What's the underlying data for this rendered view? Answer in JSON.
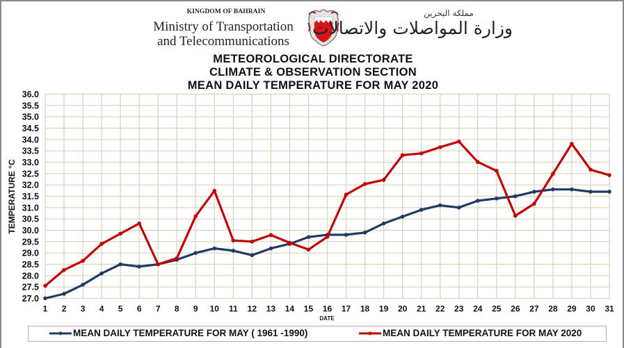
{
  "header": {
    "kingdom": "KINGDOM OF BAHRAIN",
    "ministry_line1": "Ministry of Transportation",
    "ministry_line2": "and Telecommunications",
    "arabic_kingdom": "مملكة البحرين",
    "arabic_ministry": "وزارة المواصلات والاتصالات",
    "emblem_icon": "bahrain-coat-of-arms-icon"
  },
  "colors": {
    "series_1961_1990": "#1f3a63",
    "series_2020": "#c00000",
    "grid": "#d6d2bc",
    "legend_border": "#c9a9a9"
  },
  "chart_data": {
    "type": "line",
    "title": [
      "METEOROLOGICAL  DIRECTORATE",
      "CLIMATE & OBSERVATION  SECTION",
      "MEAN DAILY TEMPERATURE  FOR MAY 2020"
    ],
    "xlabel": "DATE",
    "ylabel": "TEMPERATURE °C",
    "ylim": [
      27.0,
      36.0
    ],
    "ytick_step": 0.5,
    "yticks": [
      "27.0",
      "27.5",
      "28.0",
      "28.5",
      "29.0",
      "29.5",
      "30.0",
      "30.5",
      "31.0",
      "31.5",
      "32.0",
      "32.5",
      "33.0",
      "33.5",
      "34.0",
      "34.5",
      "35.0",
      "35.5",
      "36.0"
    ],
    "x": [
      1,
      2,
      3,
      4,
      5,
      6,
      7,
      8,
      9,
      10,
      11,
      12,
      13,
      14,
      15,
      16,
      17,
      18,
      19,
      20,
      21,
      22,
      23,
      24,
      25,
      26,
      27,
      28,
      29,
      30,
      31
    ],
    "grid": true,
    "legend_position": "bottom",
    "series": [
      {
        "name": "MEAN DAILY TEMPERATURE FOR MAY ( 1961 -1990)",
        "color": "#1f3a63",
        "values": [
          27.0,
          27.2,
          27.6,
          28.1,
          28.5,
          28.4,
          28.5,
          28.7,
          29.0,
          29.2,
          29.1,
          28.9,
          29.2,
          29.4,
          29.7,
          29.8,
          29.8,
          29.9,
          30.3,
          30.6,
          30.9,
          31.1,
          31.0,
          31.3,
          31.4,
          31.5,
          31.7,
          31.8,
          31.8,
          31.7,
          31.7
        ]
      },
      {
        "name": "MEAN DAILY TEMPERATURE FOR MAY 2020",
        "color": "#c00000",
        "values": [
          27.55,
          28.25,
          28.65,
          29.4,
          29.85,
          30.3,
          28.5,
          28.77,
          30.62,
          31.74,
          29.55,
          29.5,
          29.79,
          29.45,
          29.15,
          29.71,
          31.57,
          32.04,
          32.22,
          33.31,
          33.39,
          33.66,
          33.91,
          33.01,
          32.62,
          30.64,
          31.17,
          32.49,
          33.81,
          32.67,
          32.43
        ]
      }
    ]
  }
}
